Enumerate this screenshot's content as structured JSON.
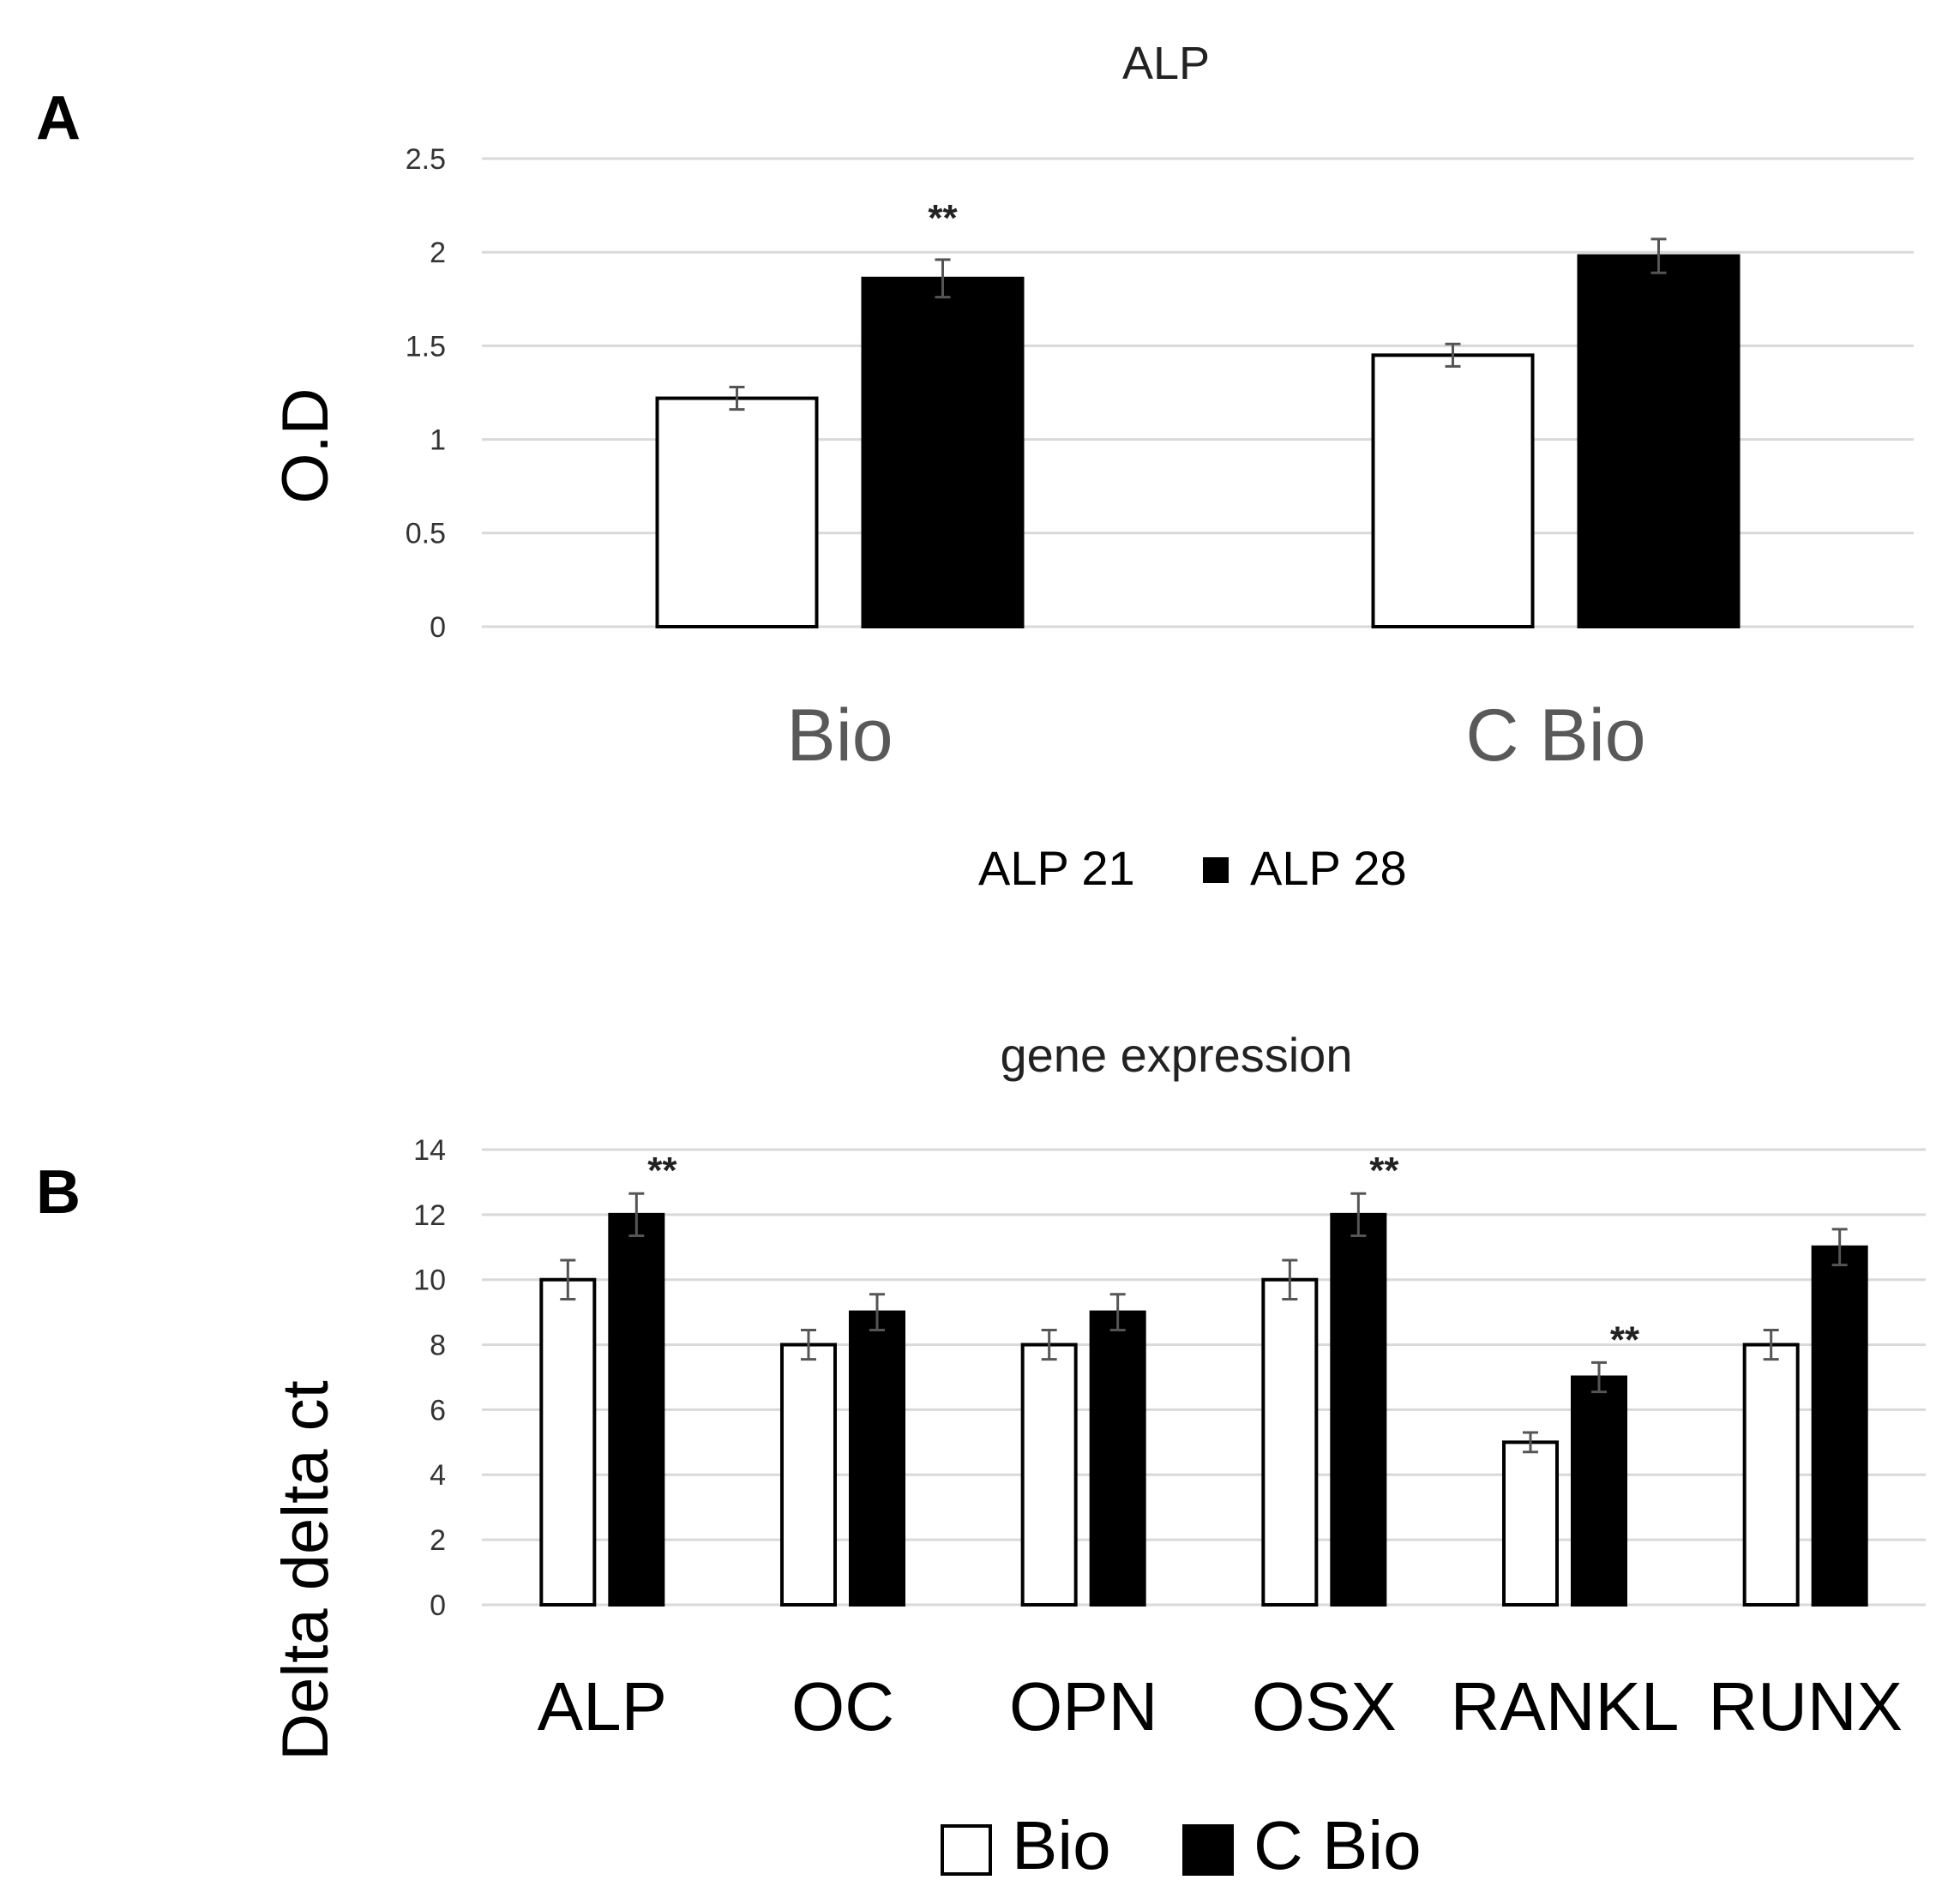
{
  "figure": {
    "panel_a_label": "A",
    "panel_b_label": "B"
  },
  "chart_data": [
    {
      "type": "bar",
      "title": "ALP",
      "categories": [
        "Bio",
        "C Bio"
      ],
      "series": [
        {
          "name": "ALP 21",
          "color": "#ffffff",
          "values": [
            1.22,
            1.45
          ],
          "errors": [
            0.06,
            0.06
          ]
        },
        {
          "name": "ALP 28",
          "color": "#000000",
          "values": [
            1.86,
            1.98
          ],
          "errors": [
            0.1,
            0.09
          ]
        }
      ],
      "ylabel": "O.D",
      "xlabel": "",
      "ylim": [
        0,
        2.5
      ],
      "yticks": [
        0,
        0.5,
        1,
        1.5,
        2,
        2.5
      ],
      "ytick_labels": [
        "0",
        "0.5",
        "1",
        "1.5",
        "2",
        "2.5"
      ],
      "grid": true,
      "legend": "bottom",
      "annotations": [
        {
          "category": "Bio",
          "series": "ALP 28",
          "text": "**"
        }
      ]
    },
    {
      "type": "bar",
      "title": "gene expression",
      "categories": [
        "ALP",
        "OC",
        "OPN",
        "OSX",
        "RANKL",
        "RUNX"
      ],
      "series": [
        {
          "name": "Bio",
          "color": "#ffffff",
          "values": [
            10,
            8,
            8,
            10,
            5,
            8
          ],
          "errors": [
            0.6,
            0.45,
            0.45,
            0.6,
            0.3,
            0.45
          ]
        },
        {
          "name": "C Bio",
          "color": "#000000",
          "values": [
            12,
            9,
            9,
            12,
            7,
            11
          ],
          "errors": [
            0.65,
            0.55,
            0.55,
            0.65,
            0.45,
            0.55
          ]
        }
      ],
      "ylabel": "Delta delta ct",
      "xlabel": "",
      "ylim": [
        0,
        14
      ],
      "yticks": [
        0,
        2,
        4,
        6,
        8,
        10,
        12,
        14
      ],
      "ytick_labels": [
        "0",
        "2",
        "4",
        "6",
        "8",
        "10",
        "12",
        "14"
      ],
      "grid": true,
      "legend": "bottom",
      "annotations": [
        {
          "category": "ALP",
          "series": "C Bio",
          "text": "**"
        },
        {
          "category": "OSX",
          "series": "C Bio",
          "text": "**"
        },
        {
          "category": "RANKL",
          "series": "C Bio",
          "text": "**"
        }
      ]
    }
  ]
}
